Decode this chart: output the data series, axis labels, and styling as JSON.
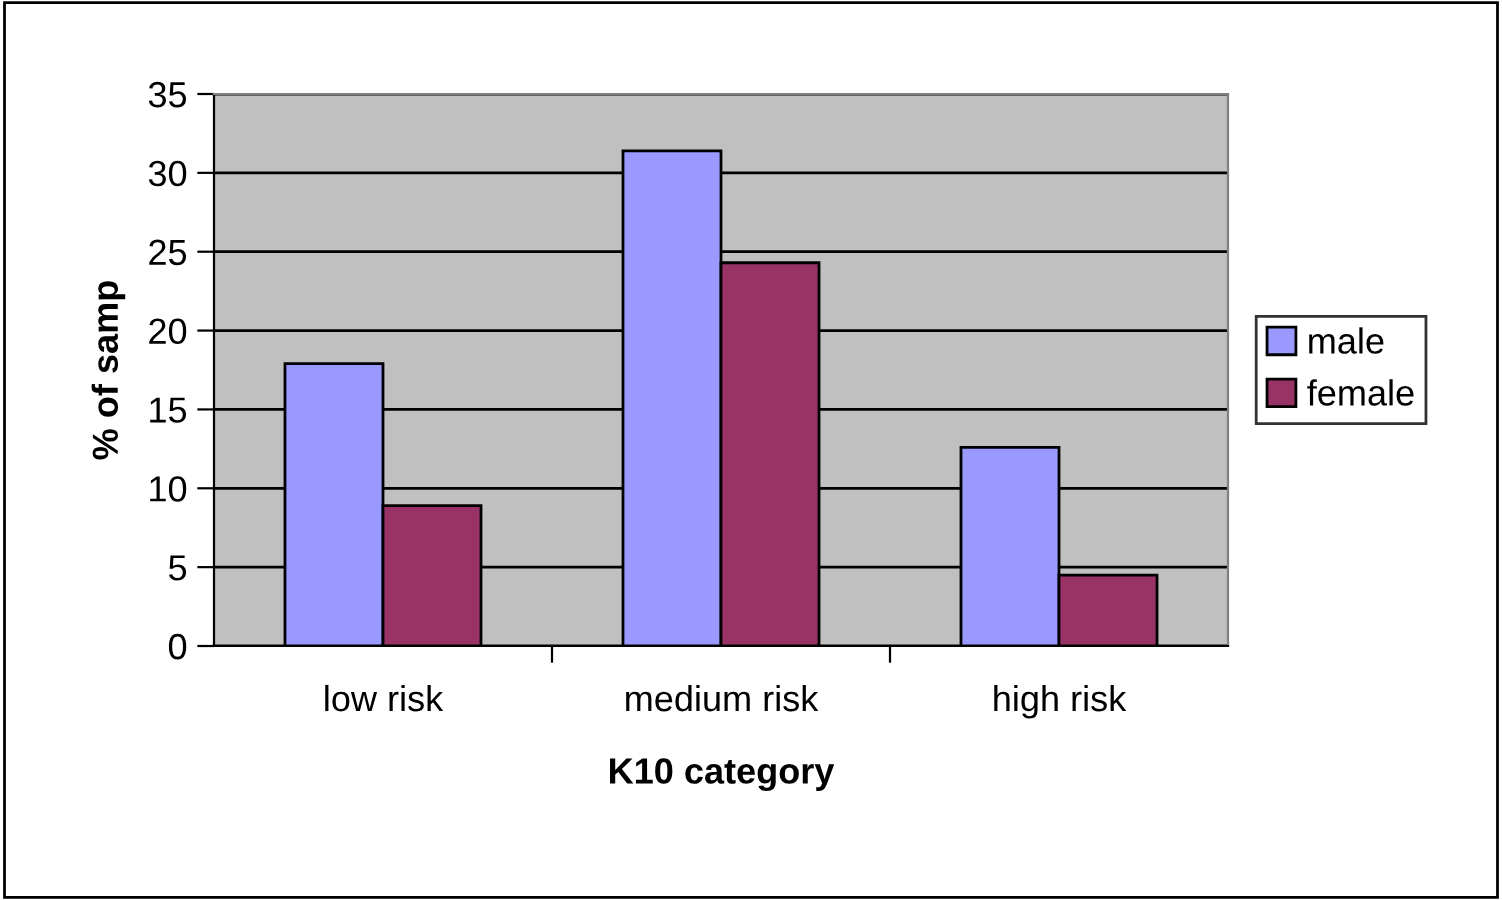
{
  "chart_data": {
    "type": "bar",
    "xlabel": "K10 category",
    "ylabel": "% of samp",
    "categories": [
      "low risk",
      "medium risk",
      "high risk"
    ],
    "series": [
      {
        "name": "male",
        "color": "#9999ff",
        "values": [
          17.9,
          31.4,
          12.6
        ]
      },
      {
        "name": "female",
        "color": "#993366",
        "values": [
          8.9,
          24.3,
          4.5
        ]
      }
    ],
    "ylim": [
      0,
      35
    ],
    "yticks": [
      0,
      5,
      10,
      15,
      20,
      25,
      30,
      35
    ],
    "grid": "y",
    "legend": "right"
  }
}
